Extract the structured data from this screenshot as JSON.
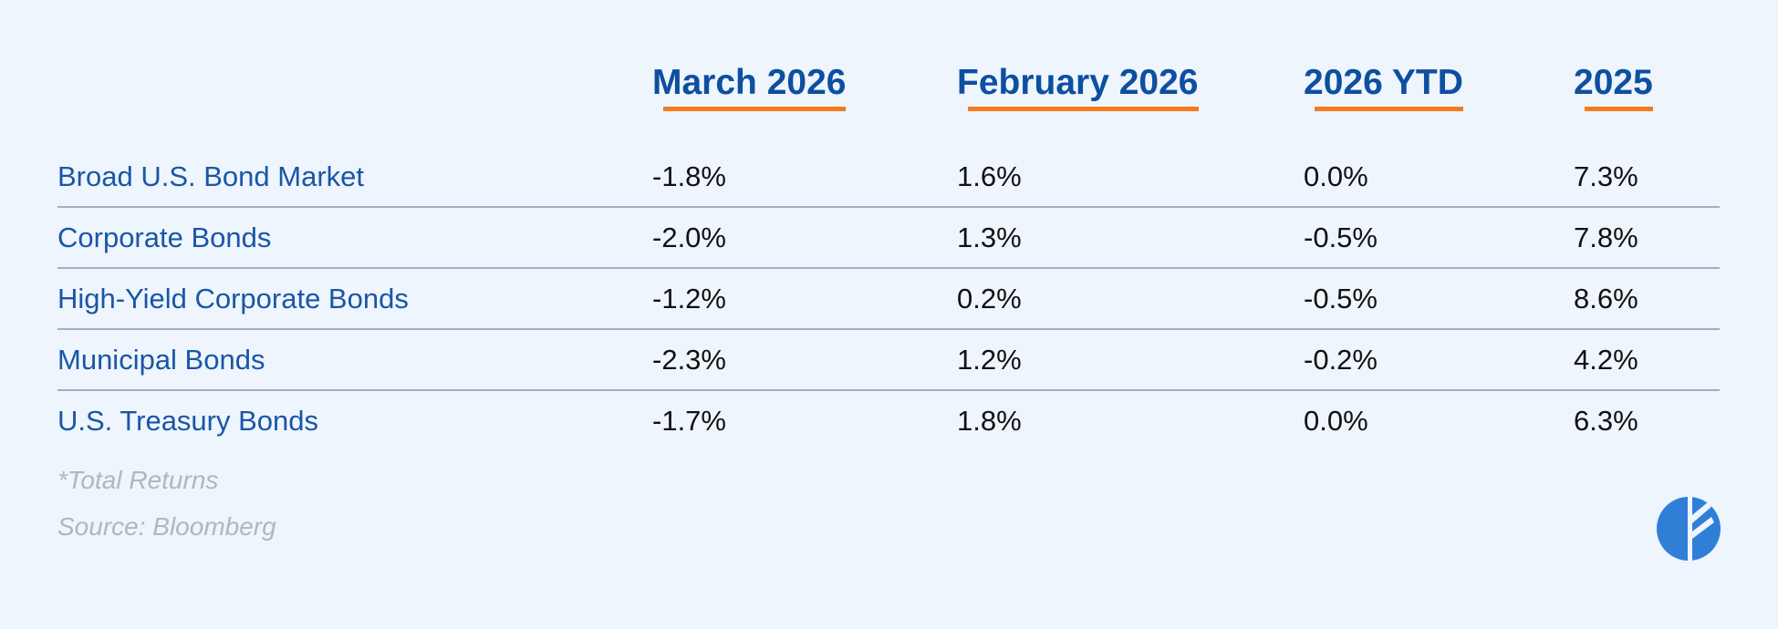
{
  "table": {
    "columns": [
      "March 2026",
      "February 2026",
      "2026 YTD",
      "2025"
    ],
    "rows": [
      {
        "label": "Broad U.S. Bond Market",
        "values": [
          "-1.8%",
          "1.6%",
          "0.0%",
          "7.3%"
        ]
      },
      {
        "label": "Corporate Bonds",
        "values": [
          "-2.0%",
          "1.3%",
          "-0.5%",
          "7.8%"
        ]
      },
      {
        "label": "High-Yield Corporate Bonds",
        "values": [
          "-1.2%",
          "0.2%",
          "-0.5%",
          "8.6%"
        ]
      },
      {
        "label": "Municipal Bonds",
        "values": [
          "-2.3%",
          "1.2%",
          "-0.2%",
          "4.2%"
        ]
      },
      {
        "label": "U.S. Treasury Bonds",
        "values": [
          "-1.7%",
          "1.8%",
          "0.0%",
          "6.3%"
        ]
      }
    ]
  },
  "footnotes": [
    "*Total Returns",
    "Source: Bloomberg"
  ]
}
